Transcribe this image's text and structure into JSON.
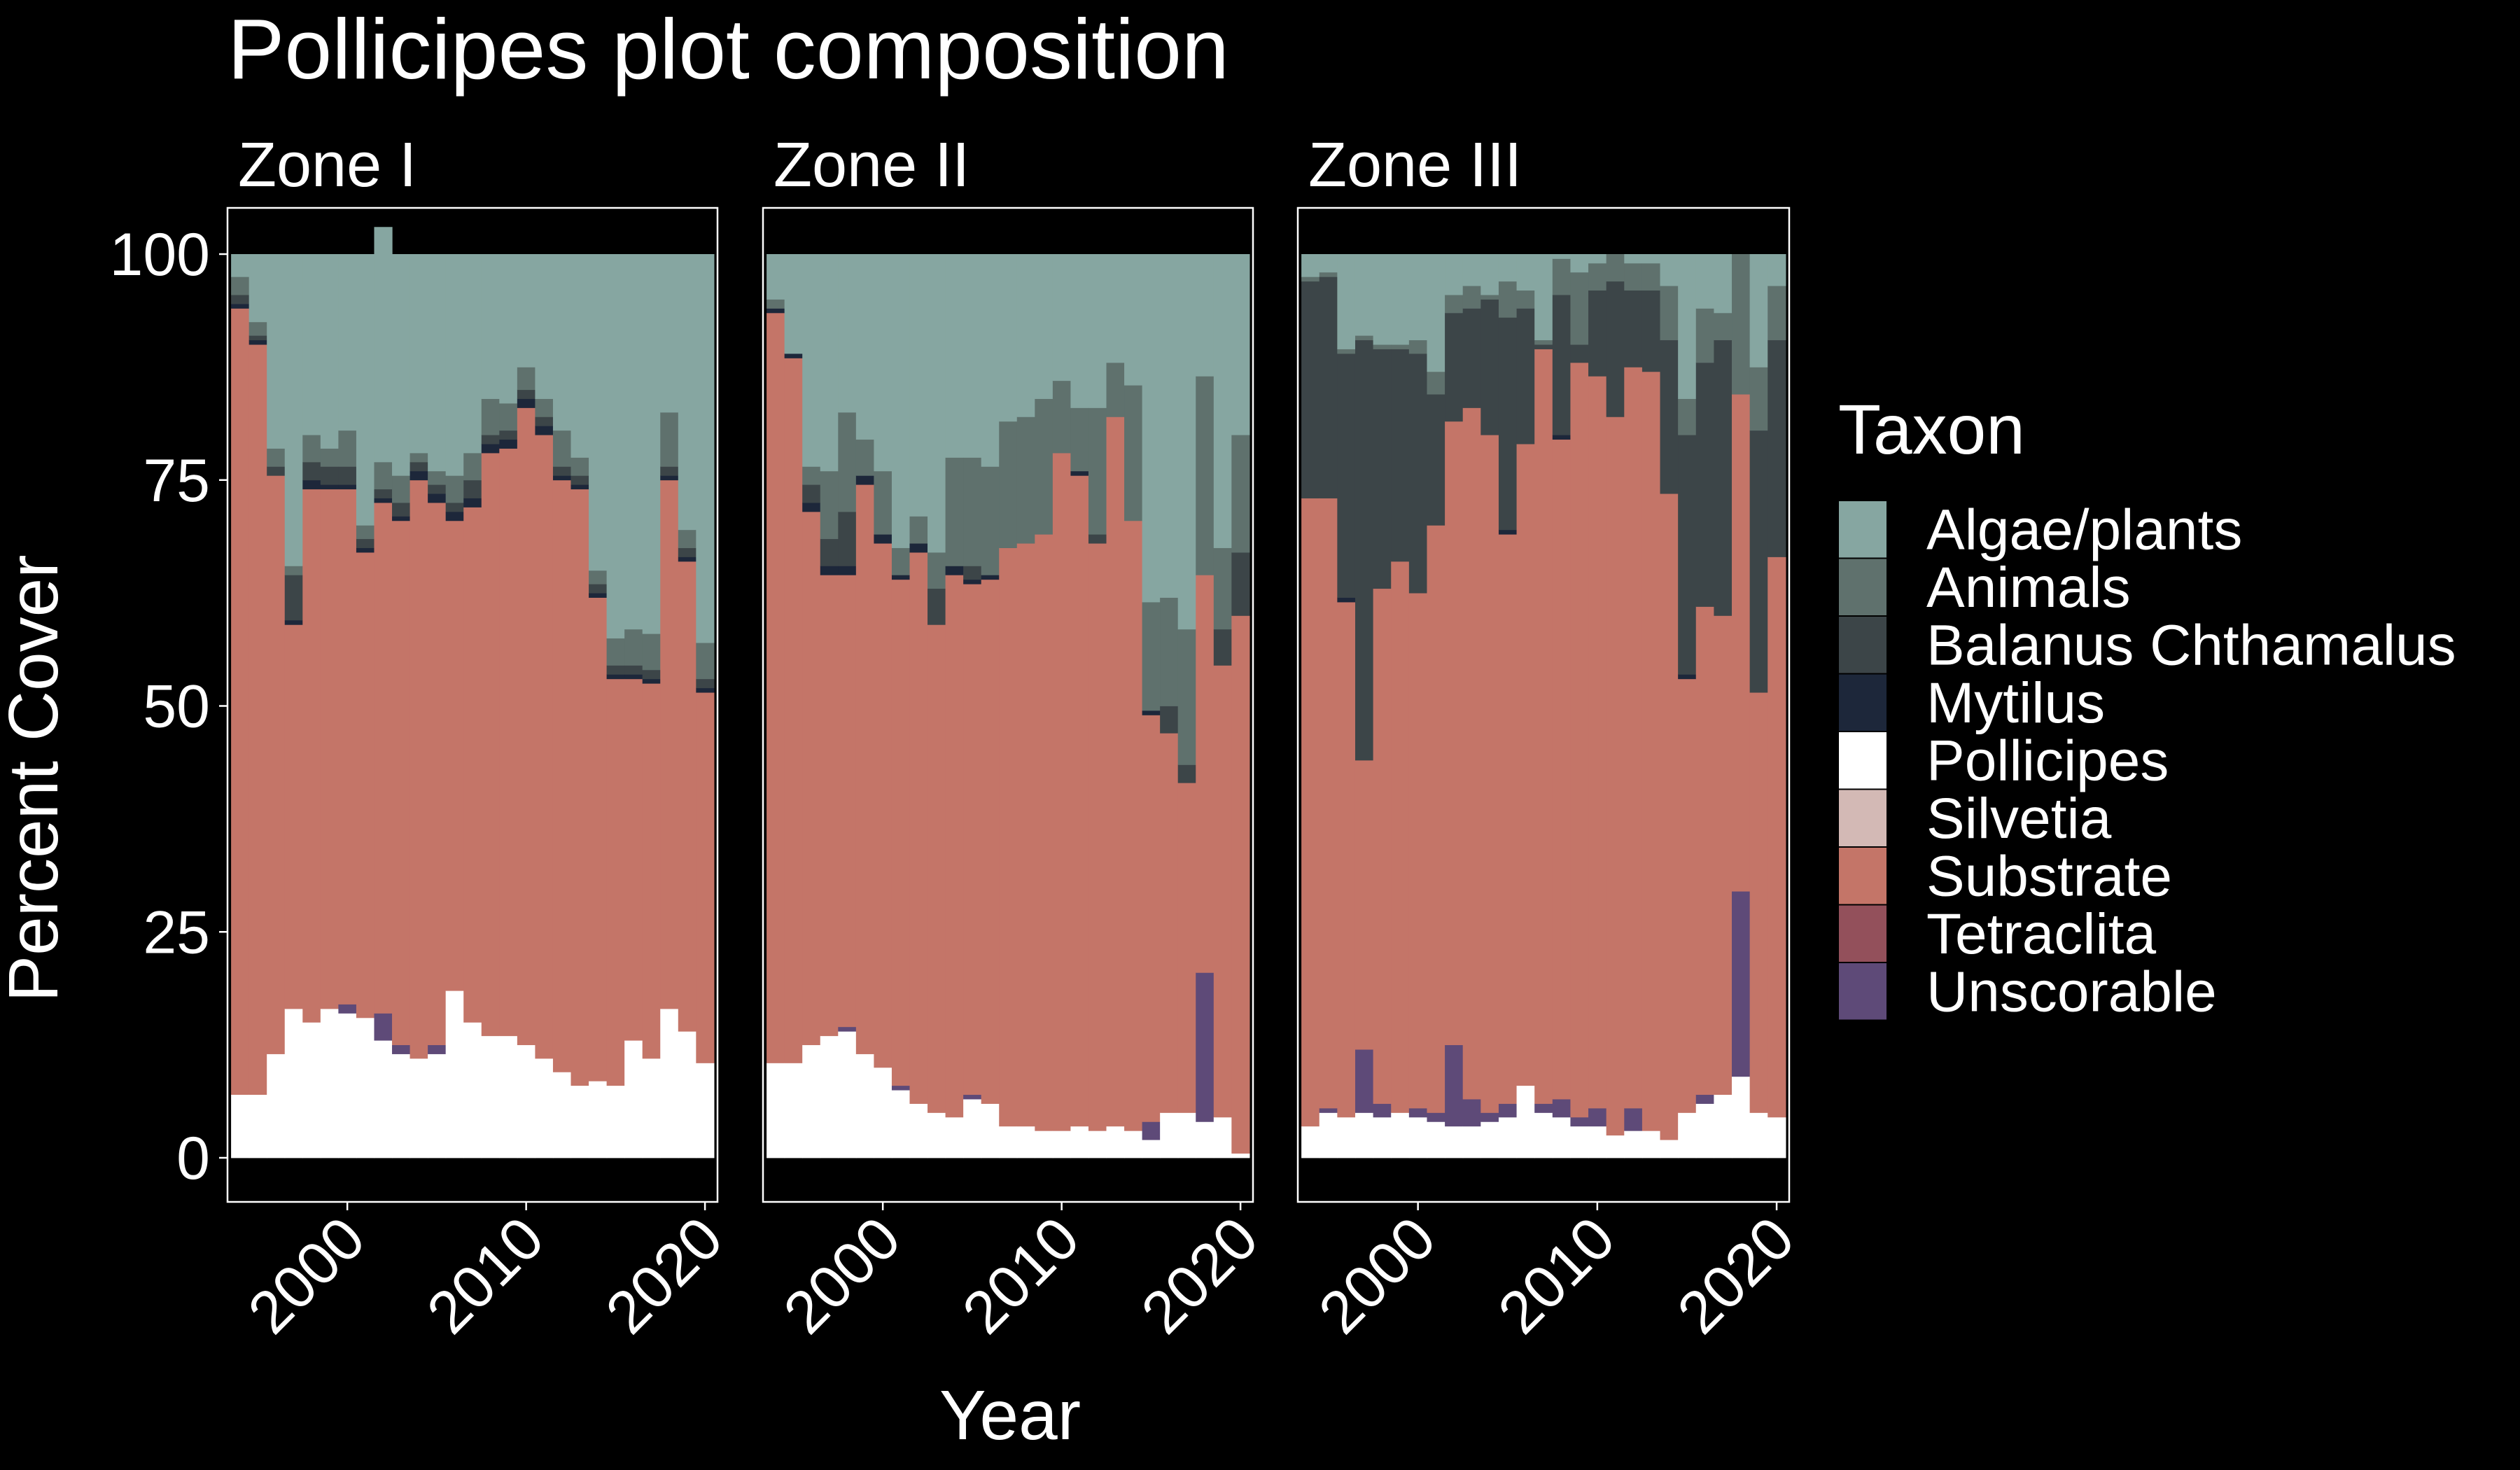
{
  "chart_data": {
    "type": "bar",
    "stacked": true,
    "title": "Pollicipes plot composition",
    "xlabel": "Year",
    "ylabel": "Percent Cover",
    "ylim": [
      0,
      100
    ],
    "yticks": [
      "0",
      "25",
      "50",
      "75",
      "100"
    ],
    "xticks": [
      "2000",
      "2010",
      "2020"
    ],
    "xlim": [
      1993.3,
      2020.7
    ],
    "legend_title": "Taxon",
    "legend_position": "right",
    "background": "#000000",
    "stack_order_bottom_to_top": [
      "Pollicipes",
      "Unscorable",
      "Tetraclita",
      "Silvetia",
      "Substrate",
      "Mytilus",
      "Balanus Chthamalus",
      "Animals",
      "Algae/plants"
    ],
    "taxa": [
      {
        "name": "Algae/plants",
        "color": "#86a6a1"
      },
      {
        "name": "Animals",
        "color": "#5f716d"
      },
      {
        "name": "Balanus Chthamalus",
        "color": "#3c4548"
      },
      {
        "name": "Mytilus",
        "color": "#1d273a"
      },
      {
        "name": "Pollicipes",
        "color": "#ffffff"
      },
      {
        "name": "Silvetia",
        "color": "#d3b9b5"
      },
      {
        "name": "Substrate",
        "color": "#c47568"
      },
      {
        "name": "Tetraclita",
        "color": "#93505b"
      },
      {
        "name": "Unscorable",
        "color": "#5e4a78"
      }
    ],
    "facets": [
      {
        "label": "Zone I",
        "years": [
          1994,
          1995,
          1996,
          1997,
          1998,
          1999,
          2000,
          2001,
          2002,
          2003,
          2004,
          2005,
          2006,
          2007,
          2008,
          2009,
          2010,
          2011,
          2012,
          2013,
          2014,
          2015,
          2016,
          2017,
          2018,
          2019,
          2020
        ],
        "series": [
          {
            "name": "Pollicipes",
            "values": [
              7,
              7,
              11.5,
              16.5,
              15,
              16.5,
              16,
              15.5,
              13,
              11.5,
              11,
              11.5,
              18.5,
              15,
              13.5,
              13.5,
              12.5,
              11,
              9.5,
              8,
              8.5,
              8,
              13,
              11,
              16.5,
              14,
              10.5
            ]
          },
          {
            "name": "Unscorable",
            "values": [
              0,
              0,
              0,
              0,
              0,
              0,
              1,
              0,
              3,
              1,
              0,
              1,
              0,
              0,
              0,
              0,
              0,
              0,
              0,
              0,
              0,
              0,
              0,
              0,
              0,
              0,
              0
            ]
          },
          {
            "name": "Tetraclita",
            "values": [
              0,
              0,
              0,
              0,
              0,
              0,
              0,
              0,
              0,
              0,
              0,
              0,
              0,
              0,
              0,
              0,
              0,
              0,
              0,
              0,
              0,
              0,
              0,
              0,
              0,
              0,
              0
            ]
          },
          {
            "name": "Silvetia",
            "values": [
              0,
              0,
              0,
              0,
              0,
              0,
              0,
              0,
              0,
              0,
              0,
              0,
              0,
              0,
              0,
              0,
              0,
              0,
              0,
              0,
              0,
              0,
              0,
              0,
              0,
              0,
              0
            ]
          },
          {
            "name": "Substrate",
            "values": [
              87,
              83,
              64,
              42.5,
              59,
              57.5,
              57,
              51.5,
              56.5,
              58,
              64,
              60,
              52,
              57,
              64.5,
              65,
              70.5,
              69,
              65.5,
              66,
              53.5,
              45,
              40,
              41.5,
              58.5,
              52,
              41
            ]
          },
          {
            "name": "Mytilus",
            "values": [
              0.5,
              0.5,
              0,
              0.5,
              1,
              0.5,
              0.5,
              0.5,
              0.5,
              0.5,
              1,
              1,
              1,
              1,
              1,
              1,
              1,
              1,
              0.5,
              0.5,
              0.5,
              0.5,
              0.5,
              0.5,
              0.5,
              0.5,
              0.5
            ]
          },
          {
            "name": "Balanus Chthamalus",
            "values": [
              1,
              0.5,
              1,
              5,
              2,
              2,
              2,
              1,
              1,
              1.5,
              1,
              1,
              1,
              2,
              1,
              1,
              1,
              1,
              1,
              1,
              1,
              1,
              1,
              1,
              1,
              1,
              1
            ]
          },
          {
            "name": "Animals",
            "values": [
              2,
              1.5,
              2,
              1,
              3,
              2,
              4,
              1.5,
              3,
              3,
              1,
              1.5,
              3,
              3,
              4,
              3,
              2.5,
              2,
              4,
              2,
              1.5,
              3,
              4,
              4,
              6,
              2,
              4
            ]
          },
          {
            "name": "Algae/plants",
            "values": [
              2.5,
              7.5,
              21.5,
              34.5,
              20,
              21.5,
              19.5,
              30,
              26,
              24.5,
              22,
              24,
              24.5,
              22,
              16,
              16.5,
              12.5,
              16,
              19.5,
              22.5,
              35,
              42.5,
              41.5,
              42,
              17.5,
              30.5,
              43
            ]
          }
        ]
      },
      {
        "label": "Zone II",
        "years": [
          1994,
          1995,
          1996,
          1997,
          1998,
          1999,
          2000,
          2001,
          2002,
          2003,
          2004,
          2005,
          2006,
          2007,
          2008,
          2009,
          2010,
          2011,
          2012,
          2013,
          2014,
          2015,
          2016,
          2017,
          2018,
          2019,
          2020
        ],
        "series": [
          {
            "name": "Pollicipes",
            "values": [
              10.5,
              10.5,
              12.5,
              13.5,
              14,
              11.5,
              10,
              7.5,
              6,
              5,
              4.5,
              6.5,
              6,
              3.5,
              3.5,
              3,
              3,
              3.5,
              3,
              3.5,
              3,
              2,
              5,
              5,
              4,
              4.5,
              0.5
            ]
          },
          {
            "name": "Unscorable",
            "values": [
              0,
              0,
              0,
              0,
              0.5,
              0,
              0,
              0.5,
              0,
              0,
              0,
              0.5,
              0,
              0,
              0,
              0,
              0,
              0,
              0,
              0,
              0,
              2,
              0,
              0,
              16.5,
              0,
              0
            ]
          },
          {
            "name": "Tetraclita",
            "values": [
              0,
              0,
              0,
              0,
              0,
              0,
              0,
              0,
              0,
              0,
              0,
              0,
              0,
              0,
              0,
              0,
              0,
              0,
              0,
              0,
              0,
              0,
              0,
              0,
              0,
              0,
              0
            ]
          },
          {
            "name": "Silvetia",
            "values": [
              0,
              0,
              0,
              0,
              0,
              0,
              0,
              0,
              0,
              0,
              0,
              0,
              0,
              0,
              0,
              0,
              0,
              0,
              0,
              0,
              0,
              0,
              0,
              0,
              0,
              0,
              0
            ]
          },
          {
            "name": "Substrate",
            "values": [
              83,
              78,
              59,
              51,
              50,
              63,
              58,
              56,
              61,
              54,
              60,
              56.5,
              58,
              64,
              64.5,
              66,
              75,
              72,
              65,
              78.5,
              67.5,
              45,
              42,
              36.5,
              44,
              50,
              59.5
            ]
          },
          {
            "name": "Mytilus",
            "values": [
              0.5,
              0.5,
              1,
              1,
              1,
              1,
              1,
              0.5,
              1,
              0,
              1,
              0.5,
              0.5,
              0,
              0,
              0,
              0,
              0.5,
              0,
              0,
              0,
              0.5,
              0,
              0,
              0,
              0,
              0
            ]
          },
          {
            "name": "Balanus Chthamalus",
            "values": [
              0,
              0,
              2,
              3,
              6,
              0,
              0,
              0,
              0,
              4,
              0,
              1.5,
              0,
              0,
              0,
              0,
              0,
              0,
              1,
              0,
              0,
              0,
              3,
              2,
              0,
              4,
              7
            ]
          },
          {
            "name": "Animals",
            "values": [
              1,
              0,
              2,
              7.5,
              11,
              4,
              7,
              3,
              3,
              4,
              12,
              12,
              12,
              14,
              14,
              15,
              8,
              7,
              14,
              6,
              15,
              12,
              12,
              15,
              22,
              9,
              13
            ]
          },
          {
            "name": "Algae/plants",
            "values": [
              5,
              11,
              23.5,
              24,
              17.5,
              20.5,
              24,
              32.5,
              29,
              33,
              22.5,
              22.5,
              23.5,
              18.5,
              18,
              16,
              14,
              17,
              17,
              12,
              14.5,
              38.5,
              38,
              41.5,
              13.5,
              32.5,
              20
            ]
          }
        ]
      },
      {
        "label": "Zone III",
        "years": [
          1994,
          1995,
          1996,
          1997,
          1998,
          1999,
          2000,
          2001,
          2002,
          2003,
          2004,
          2005,
          2006,
          2007,
          2008,
          2009,
          2010,
          2011,
          2012,
          2013,
          2014,
          2015,
          2016,
          2017,
          2018,
          2019,
          2020
        ],
        "series": [
          {
            "name": "Pollicipes",
            "values": [
              3.5,
              5,
              4.5,
              5,
              4.5,
              5,
              4.5,
              4,
              3.5,
              3.5,
              4,
              4.5,
              8,
              5,
              4.5,
              3.5,
              3.5,
              2.5,
              3,
              3,
              2,
              5,
              6,
              7,
              9,
              5,
              4.5
            ]
          },
          {
            "name": "Unscorable",
            "values": [
              0,
              0.5,
              0,
              7,
              1.5,
              0,
              1,
              1,
              9,
              3,
              1,
              1.5,
              0,
              1,
              2,
              1,
              2,
              0,
              2.5,
              0,
              0,
              0,
              1,
              0,
              20.5,
              0,
              0
            ]
          },
          {
            "name": "Tetraclita",
            "values": [
              0,
              0,
              0,
              0,
              0,
              0,
              0,
              0,
              0,
              0,
              0,
              0,
              0,
              0,
              0,
              0,
              0,
              0,
              0,
              0,
              0,
              0,
              0,
              0,
              0,
              0,
              0
            ]
          },
          {
            "name": "Silvetia",
            "values": [
              0,
              0,
              0,
              0,
              0,
              0,
              0,
              0,
              0,
              0,
              0,
              0,
              0,
              0,
              0,
              0,
              0,
              0,
              0,
              0,
              0,
              0,
              0,
              0,
              0,
              0,
              0
            ]
          },
          {
            "name": "Substrate",
            "values": [
              69.5,
              67.5,
              57,
              32,
              57,
              61,
              57,
              65,
              69,
              76.5,
              75,
              63,
              71,
              83.5,
              73,
              83.5,
              81,
              79.5,
              82,
              84,
              71.5,
              48,
              54,
              53,
              55,
              46.5,
              62
            ]
          },
          {
            "name": "Mytilus",
            "values": [
              0,
              0,
              0.5,
              0,
              0,
              0,
              0,
              0,
              0,
              0,
              0,
              0.5,
              0,
              0,
              0.5,
              0,
              0,
              0,
              0,
              0,
              0,
              0.5,
              0,
              0,
              0,
              0,
              0
            ]
          },
          {
            "name": "Balanus Chthamalus",
            "values": [
              24,
              24.5,
              27,
              46.5,
              26.5,
              23.5,
              26.5,
              14.5,
              12,
              11,
              15,
              23.5,
              15,
              0.5,
              15.5,
              2,
              9.5,
              15,
              8.5,
              9,
              17,
              26.5,
              27,
              30.5,
              0,
              29,
              24
            ]
          },
          {
            "name": "Animals",
            "values": [
              0.5,
              0.5,
              0.5,
              0.5,
              0.5,
              0.5,
              1.5,
              2.5,
              2,
              2.5,
              0.5,
              4,
              2,
              0.5,
              4,
              8,
              3,
              3,
              3,
              3,
              6,
              4,
              6,
              3,
              15.5,
              7,
              6
            ]
          },
          {
            "name": "Algae/plants",
            "values": [
              2.5,
              2,
              10.5,
              9,
              10,
              10,
              9.5,
              13,
              4.5,
              3.5,
              4.5,
              3,
              4,
              9.5,
              0.5,
              2,
              1,
              0,
              1,
              1,
              3.5,
              16,
              6,
              6.5,
              0,
              12.5,
              3.5
            ]
          }
        ]
      }
    ]
  }
}
